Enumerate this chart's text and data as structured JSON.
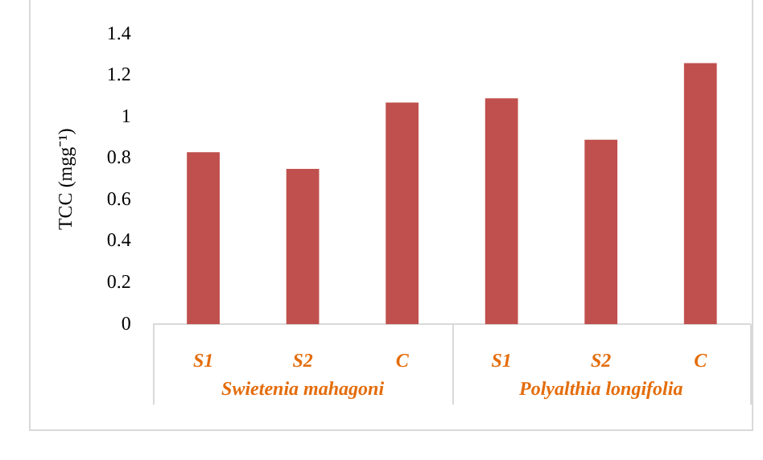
{
  "chart_data": {
    "type": "bar",
    "ylabel": "TCC (mgg⁻¹)",
    "categories": [
      "S1",
      "S2",
      "C",
      "S1",
      "S2",
      "C"
    ],
    "values": [
      0.83,
      0.75,
      1.07,
      1.09,
      0.89,
      1.26
    ],
    "color": "#c0504d",
    "ylim": [
      0,
      1.4
    ],
    "yticks": [
      0,
      0.2,
      0.4,
      0.6,
      0.8,
      1,
      1.2,
      1.4
    ],
    "grid": false,
    "legend": false,
    "annotations": [
      "Swietenia mahagoni",
      "Polyalthia longifolia"
    ]
  }
}
